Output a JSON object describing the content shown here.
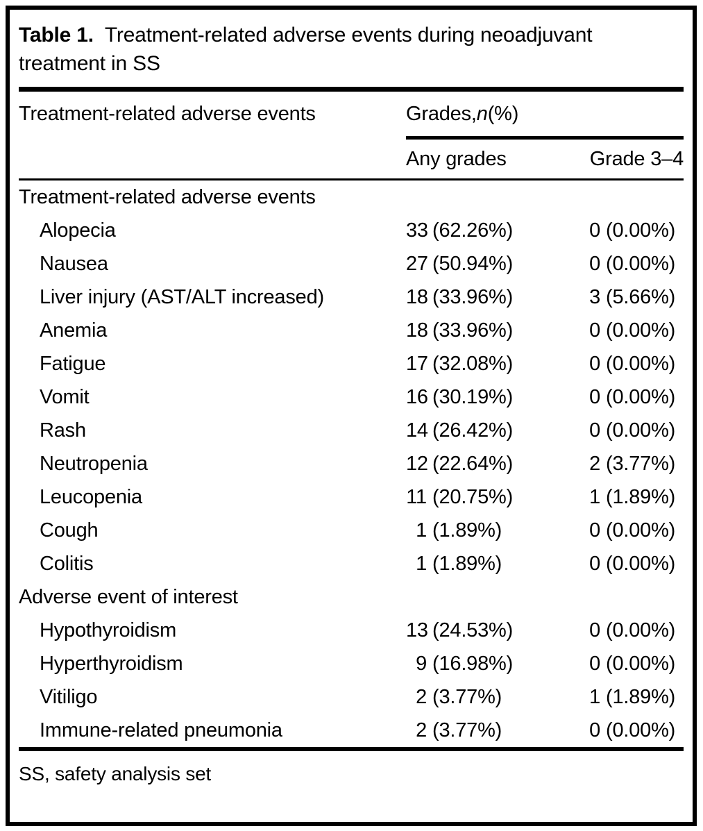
{
  "caption": {
    "label": "Table 1.",
    "text": "Treatment-related adverse events during neoadjuvant treatment in SS"
  },
  "header": {
    "col1": "Treatment-related adverse events",
    "group_prefix": "Grades, ",
    "group_n": "n",
    "group_suffix": " (%)",
    "col2": "Any grades",
    "col3": "Grade 3–4"
  },
  "sections": [
    {
      "title": "Treatment-related adverse events",
      "rows": [
        {
          "label": "Alopecia",
          "any_n": "33",
          "any_pct": "(62.26%)",
          "g34_n": "0",
          "g34_pct": "(0.00%)"
        },
        {
          "label": "Nausea",
          "any_n": "27",
          "any_pct": "(50.94%)",
          "g34_n": "0",
          "g34_pct": "(0.00%)"
        },
        {
          "label": "Liver injury (AST/ALT increased)",
          "any_n": "18",
          "any_pct": "(33.96%)",
          "g34_n": "3",
          "g34_pct": "(5.66%)"
        },
        {
          "label": "Anemia",
          "any_n": "18",
          "any_pct": "(33.96%)",
          "g34_n": "0",
          "g34_pct": "(0.00%)"
        },
        {
          "label": "Fatigue",
          "any_n": "17",
          "any_pct": "(32.08%)",
          "g34_n": "0",
          "g34_pct": "(0.00%)"
        },
        {
          "label": "Vomit",
          "any_n": "16",
          "any_pct": "(30.19%)",
          "g34_n": "0",
          "g34_pct": "(0.00%)"
        },
        {
          "label": "Rash",
          "any_n": "14",
          "any_pct": "(26.42%)",
          "g34_n": "0",
          "g34_pct": "(0.00%)"
        },
        {
          "label": "Neutropenia",
          "any_n": "12",
          "any_pct": "(22.64%)",
          "g34_n": "2",
          "g34_pct": "(3.77%)"
        },
        {
          "label": "Leucopenia",
          "any_n": "11",
          "any_pct": "(20.75%)",
          "g34_n": "1",
          "g34_pct": "(1.89%)"
        },
        {
          "label": "Cough",
          "any_n": "1",
          "any_pct": "(1.89%)",
          "g34_n": "0",
          "g34_pct": "(0.00%)"
        },
        {
          "label": "Colitis",
          "any_n": "1",
          "any_pct": "(1.89%)",
          "g34_n": "0",
          "g34_pct": "(0.00%)"
        }
      ]
    },
    {
      "title": "Adverse event of interest",
      "rows": [
        {
          "label": "Hypothyroidism",
          "any_n": "13",
          "any_pct": "(24.53%)",
          "g34_n": "0",
          "g34_pct": "(0.00%)"
        },
        {
          "label": "Hyperthyroidism",
          "any_n": "9",
          "any_pct": "(16.98%)",
          "g34_n": "0",
          "g34_pct": "(0.00%)"
        },
        {
          "label": "Vitiligo",
          "any_n": "2",
          "any_pct": "(3.77%)",
          "g34_n": "1",
          "g34_pct": "(1.89%)"
        },
        {
          "label": "Immune-related pneumonia",
          "any_n": "2",
          "any_pct": "(3.77%)",
          "g34_n": "0",
          "g34_pct": "(0.00%)"
        }
      ]
    }
  ],
  "footnote": "SS, safety analysis set"
}
